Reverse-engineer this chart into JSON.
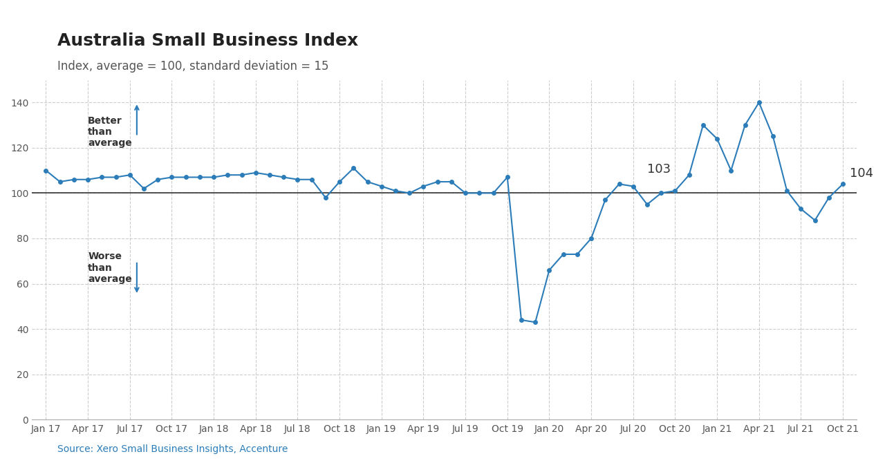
{
  "title": "Australia Small Business Index",
  "subtitle": "Index, average = 100, standard deviation = 15",
  "source": "Source: Xero Small Business Insights, Accenture",
  "line_color": "#2b7cb8",
  "background_color": "#ffffff",
  "grid_color": "#cccccc",
  "annotation_100_color": "#333333",
  "ylim": [
    0,
    150
  ],
  "yticks": [
    0,
    20,
    40,
    60,
    80,
    100,
    120,
    140
  ],
  "xtick_labels": [
    "Jan 17",
    "Apr 17",
    "Jul 17",
    "Oct 17",
    "Jan 18",
    "Apr 18",
    "Jul 18",
    "Oct 18",
    "Jan 19",
    "Apr 19",
    "Jul 19",
    "Oct 19",
    "Jan 20",
    "Apr 20",
    "Jul 20",
    "Oct 20",
    "Jan 21",
    "Apr 21",
    "Jul 21",
    "Oct 21"
  ],
  "values": [
    110,
    105,
    106,
    106,
    107,
    107,
    108,
    102,
    106,
    107,
    107,
    107,
    107,
    108,
    108,
    109,
    108,
    107,
    106,
    106,
    98,
    105,
    111,
    105,
    103,
    101,
    100,
    103,
    105,
    105,
    100,
    100,
    100,
    107,
    44,
    43,
    66,
    73,
    73,
    80,
    97,
    104,
    103,
    95,
    100,
    101,
    108,
    130,
    124,
    110,
    130,
    140,
    125,
    101,
    93,
    88,
    98,
    104
  ],
  "better_than_text": "Better\nthan\naverage",
  "worse_than_text": "Worse\nthan\naverage",
  "annotation_103": "103",
  "annotation_104": "104",
  "title_fontsize": 18,
  "subtitle_fontsize": 12,
  "annotation_fontsize": 12,
  "tick_fontsize": 10,
  "source_fontsize": 10
}
